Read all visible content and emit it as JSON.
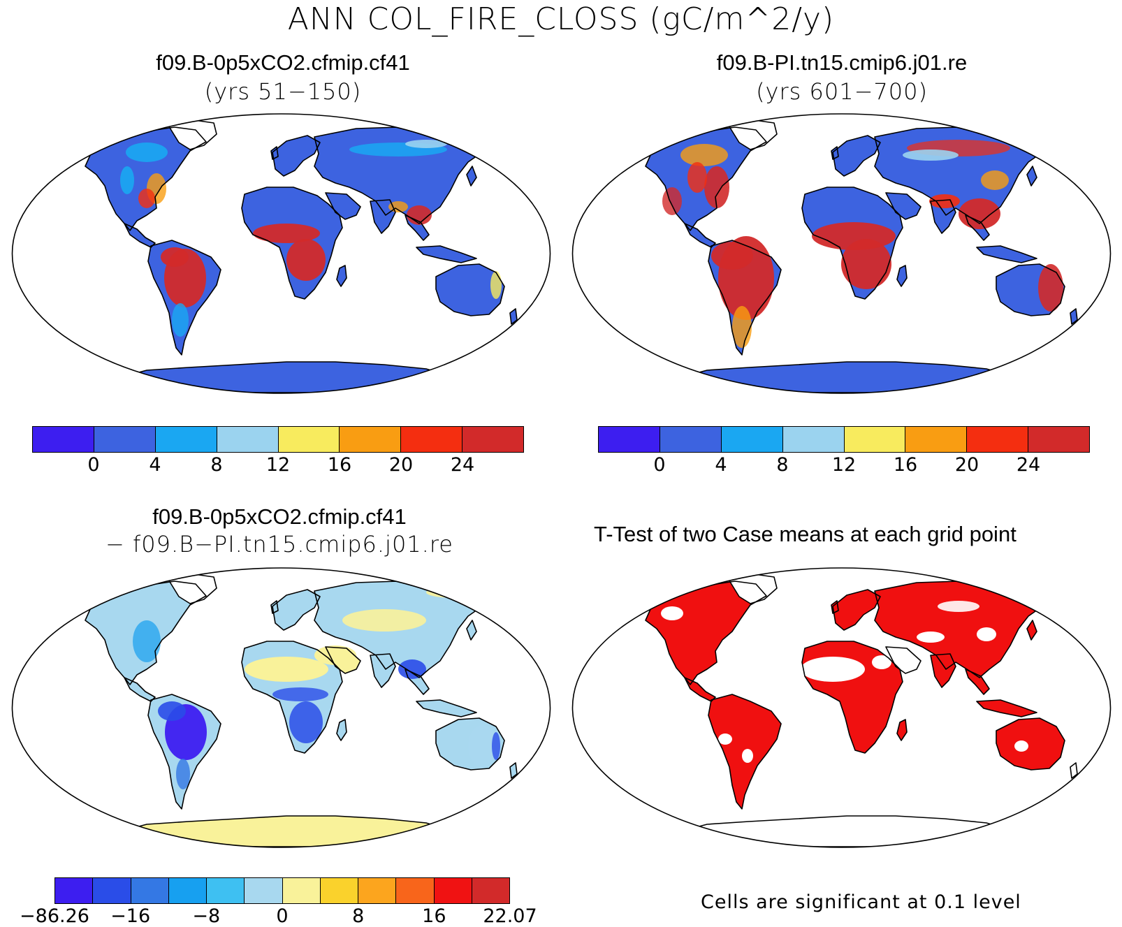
{
  "title": "ANN COL_FIRE_CLOSS (gC/m^2/y)",
  "panels": {
    "top_left": {
      "case": "f09.B-0p5xCO2.cfmip.cf41",
      "years": "(yrs 51−150)"
    },
    "top_right": {
      "case": "f09.B-PI.tn15.cmip6.j01.re",
      "years": "(yrs 601−700)"
    },
    "bottom_left": {
      "case": "f09.B-0p5xCO2.cfmip.cf41",
      "minus_case": "− f09.B−PI.tn15.cmip6.j01.re"
    },
    "bottom_right": {
      "title": "T-Test of two Case means at each grid point",
      "note": "Cells are significant at 0.1 level"
    }
  },
  "colorbars": {
    "absolute": {
      "colors": [
        "#3d1ef0",
        "#3d63e0",
        "#1aa7f2",
        "#9bd3ef",
        "#f8eb5e",
        "#f99d12",
        "#f42e10",
        "#d22a2a"
      ],
      "tick_labels": [
        "0",
        "4",
        "8",
        "12",
        "16",
        "20",
        "24"
      ]
    },
    "difference": {
      "colors": [
        "#3d1ef0",
        "#2a4de8",
        "#3478e4",
        "#17a0f0",
        "#3ec0f2",
        "#a8d8ef",
        "#f9f29a",
        "#fad22c",
        "#fca51e",
        "#f8651b",
        "#f01212",
        "#d22a2a"
      ],
      "tick_labels": [
        "−86.26",
        "−16",
        "−8",
        "0",
        "8",
        "16",
        "22.07"
      ]
    }
  },
  "colors": {
    "ocean": "#ffffff",
    "significant": "#f01010"
  }
}
